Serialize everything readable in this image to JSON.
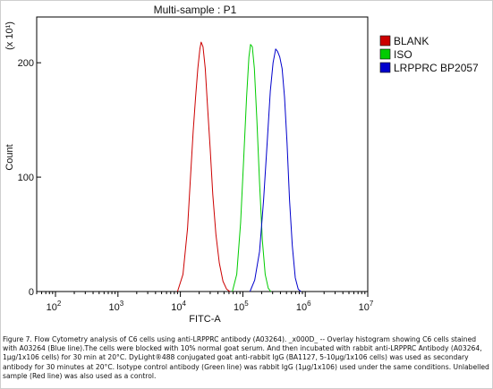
{
  "chart_data": {
    "type": "line",
    "title": "Multi-sample : P1",
    "xlabel": "FITC-A",
    "ylabel": "Count",
    "ylabel_multiplier": "(x 10¹)",
    "x_scale": "log",
    "xlim": [
      50,
      10000000
    ],
    "ylim": [
      0,
      240
    ],
    "x_ticks": [
      {
        "value": 100,
        "base": "10",
        "exp": "2"
      },
      {
        "value": 1000,
        "base": "10",
        "exp": "3"
      },
      {
        "value": 10000,
        "base": "10",
        "exp": "4"
      },
      {
        "value": 100000,
        "base": "10",
        "exp": "5"
      },
      {
        "value": 1000000,
        "base": "10",
        "exp": "6"
      },
      {
        "value": 10000000,
        "base": "10",
        "exp": "7"
      }
    ],
    "y_ticks": [
      0,
      100,
      200
    ],
    "grid": false,
    "legend_position": "right",
    "series": [
      {
        "name": "BLANK",
        "color": "#cc0000",
        "points": [
          [
            9000,
            0
          ],
          [
            11000,
            15
          ],
          [
            13000,
            55
          ],
          [
            14500,
            100
          ],
          [
            16000,
            140
          ],
          [
            17500,
            170
          ],
          [
            19000,
            195
          ],
          [
            20500,
            212
          ],
          [
            21500,
            218
          ],
          [
            23000,
            214
          ],
          [
            25000,
            195
          ],
          [
            27000,
            165
          ],
          [
            30000,
            125
          ],
          [
            33000,
            85
          ],
          [
            37000,
            50
          ],
          [
            42000,
            25
          ],
          [
            48000,
            9
          ],
          [
            55000,
            2
          ],
          [
            62000,
            0
          ]
        ]
      },
      {
        "name": "ISO",
        "color": "#00cc00",
        "points": [
          [
            68000,
            0
          ],
          [
            80000,
            15
          ],
          [
            92000,
            60
          ],
          [
            103000,
            115
          ],
          [
            115000,
            170
          ],
          [
            125000,
            205
          ],
          [
            133000,
            216
          ],
          [
            142000,
            214
          ],
          [
            153000,
            195
          ],
          [
            168000,
            150
          ],
          [
            185000,
            95
          ],
          [
            205000,
            45
          ],
          [
            228000,
            15
          ],
          [
            255000,
            3
          ],
          [
            280000,
            0
          ]
        ]
      },
      {
        "name": "LRPPRC BP2057",
        "color": "#0000cc",
        "points": [
          [
            130000,
            0
          ],
          [
            155000,
            10
          ],
          [
            185000,
            35
          ],
          [
            215000,
            80
          ],
          [
            245000,
            130
          ],
          [
            275000,
            175
          ],
          [
            305000,
            200
          ],
          [
            335000,
            212
          ],
          [
            360000,
            210
          ],
          [
            390000,
            205
          ],
          [
            425000,
            195
          ],
          [
            465000,
            170
          ],
          [
            510000,
            130
          ],
          [
            560000,
            80
          ],
          [
            620000,
            40
          ],
          [
            690000,
            12
          ],
          [
            770000,
            2
          ],
          [
            850000,
            0
          ]
        ]
      }
    ]
  },
  "caption": "Figure 7. Flow Cytometry analysis of C6 cells using anti-LRPPRC antibody (A03264). _x000D_ -- Overlay histogram showing C6 cells stained with A03264 (Blue line).The cells were blocked with 10% normal goat serum. And then incubated with rabbit anti-LRPPRC Antibody (A03264, 1μg/1x106 cells) for 30 min at 20°C. DyLight®488 conjugated goat anti-rabbit IgG (BA1127, 5-10μg/1x106 cells) was used as secondary antibody for 30 minutes at 20°C. Isotype control antibody (Green line) was rabbit IgG (1μg/1x106) used under the same conditions. Unlabelled sample (Red line) was also used as a control."
}
